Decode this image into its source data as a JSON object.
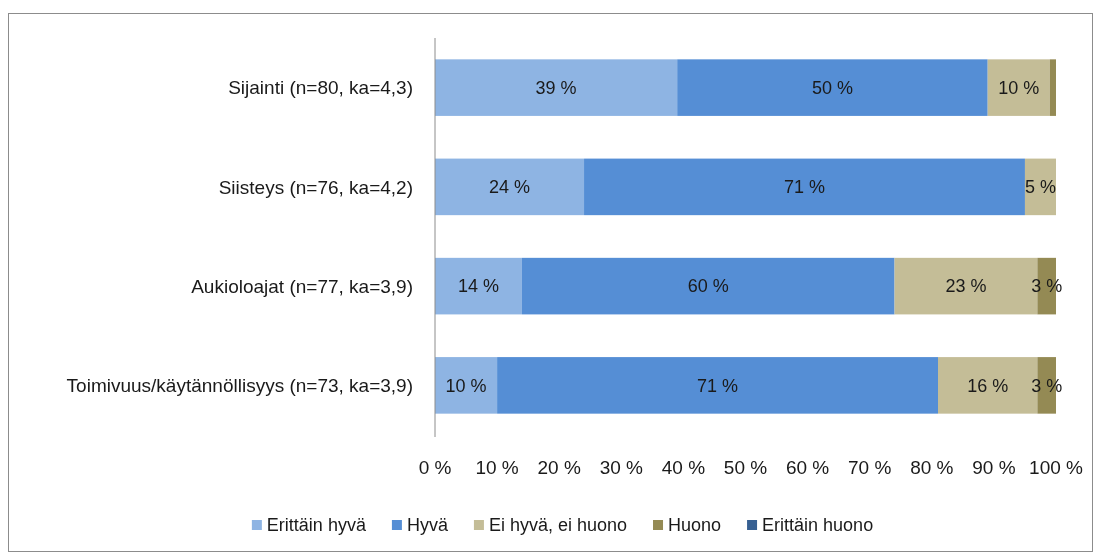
{
  "chart_data": {
    "type": "bar",
    "orientation": "horizontal",
    "stacked": true,
    "categories": [
      "Sijainti (n=80, ka=4,3)",
      "Siisteys (n=76, ka=4,2)",
      "Aukioloajat (n=77, ka=3,9)",
      "Toimivuus/käytännöllisyys (n=73, ka=3,9)"
    ],
    "series": [
      {
        "name": "Erittäin hyvä",
        "color": "#8eb4e3",
        "values": [
          39,
          24,
          14,
          10
        ],
        "value_labels": [
          "39 %",
          "24 %",
          "14 %",
          "10 %"
        ]
      },
      {
        "name": "Hyvä",
        "color": "#558ed5",
        "values": [
          50,
          71,
          60,
          71
        ],
        "value_labels": [
          "50 %",
          "71 %",
          "60 %",
          "71 %"
        ]
      },
      {
        "name": "Ei hyvä, ei huono",
        "color": "#c4bd97",
        "values": [
          10,
          5,
          23,
          16
        ],
        "value_labels": [
          "10 %",
          "5 %",
          "23 %",
          "16 %"
        ]
      },
      {
        "name": "Huono",
        "color": "#948a54",
        "values": [
          1,
          0,
          3,
          3
        ],
        "value_labels": [
          null,
          null,
          "3 %",
          "3 %"
        ]
      },
      {
        "name": "Erittäin huono",
        "color": "#376092",
        "values": [
          0,
          0,
          0,
          0
        ],
        "value_labels": [
          null,
          null,
          null,
          null
        ]
      }
    ],
    "xlim": [
      0,
      100
    ],
    "xticks": [
      {
        "value": 0,
        "label": "0 %"
      },
      {
        "value": 10,
        "label": "10 %"
      },
      {
        "value": 20,
        "label": "20 %"
      },
      {
        "value": 30,
        "label": "30 %"
      },
      {
        "value": 40,
        "label": "40 %"
      },
      {
        "value": 50,
        "label": "50 %"
      },
      {
        "value": 60,
        "label": "60 %"
      },
      {
        "value": 70,
        "label": "70 %"
      },
      {
        "value": 80,
        "label": "80 %"
      },
      {
        "value": 90,
        "label": "90 %"
      },
      {
        "value": 100,
        "label": "100 %"
      }
    ],
    "grid": false,
    "legend": "bottom"
  }
}
